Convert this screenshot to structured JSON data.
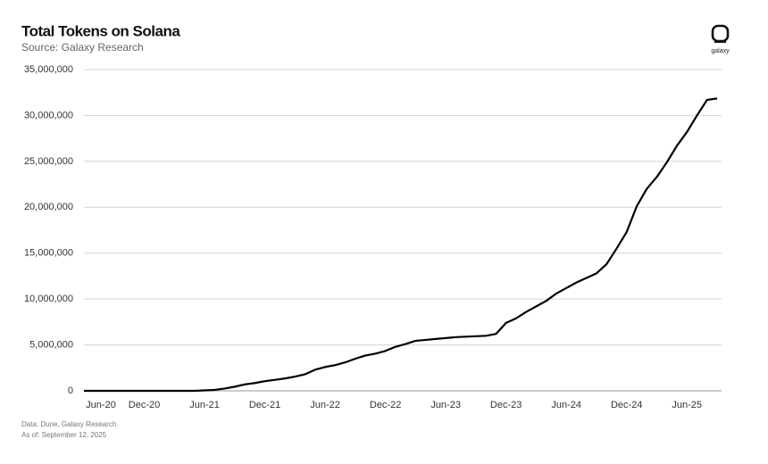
{
  "chart_data": {
    "type": "line",
    "title": "Total Tokens on Solana",
    "subtitle": "Source: Galaxy Research",
    "logo_text": "galaxy",
    "notes": [
      "Data: Dune, Galaxy Research",
      "As of: September 12, 2025"
    ],
    "categories": [
      "Jun-20",
      null,
      null,
      null,
      null,
      null,
      "Dec-20",
      null,
      null,
      null,
      null,
      null,
      "Jun-21",
      null,
      null,
      null,
      null,
      null,
      "Dec-21",
      null,
      null,
      null,
      null,
      null,
      "Jun-22",
      null,
      null,
      null,
      null,
      null,
      "Dec-22",
      null,
      null,
      null,
      null,
      null,
      "Jun-23",
      null,
      null,
      null,
      null,
      null,
      "Dec-23",
      null,
      null,
      null,
      null,
      null,
      "Jun-24",
      null,
      null,
      null,
      null,
      null,
      "Dec-24",
      null,
      null,
      null,
      null,
      null,
      "Jun-25",
      null,
      null,
      null
    ],
    "values": [
      0,
      0,
      0,
      0,
      0,
      0,
      0,
      0,
      0,
      0,
      0,
      0,
      50000,
      100000,
      250000,
      450000,
      700000,
      850000,
      1050000,
      1200000,
      1350000,
      1550000,
      1800000,
      2300000,
      2600000,
      2800000,
      3100000,
      3500000,
      3850000,
      4050000,
      4350000,
      4800000,
      5100000,
      5450000,
      5550000,
      5650000,
      5750000,
      5850000,
      5900000,
      5950000,
      6000000,
      6200000,
      7400000,
      7900000,
      8600000,
      9200000,
      9800000,
      10600000,
      11200000,
      11800000,
      12300000,
      12800000,
      13800000,
      15500000,
      17300000,
      20100000,
      22000000,
      23300000,
      24900000,
      26700000,
      28200000,
      30000000,
      31700000,
      31850000
    ],
    "color": "#000000",
    "ylim": [
      0,
      35000000
    ],
    "yticks": [
      0,
      {
        "value": 5000000,
        "label": "5,000,000"
      },
      {
        "value": 10000000,
        "label": "10,000,000"
      },
      {
        "value": 15000000,
        "label": "15,000,000"
      },
      {
        "value": 20000000,
        "label": "20,000,000"
      },
      {
        "value": 25000000,
        "label": "25,000,000"
      },
      {
        "value": 30000000,
        "label": "30,000,000"
      },
      {
        "value": 35000000,
        "label": "35,000,000"
      }
    ],
    "grid": true
  }
}
